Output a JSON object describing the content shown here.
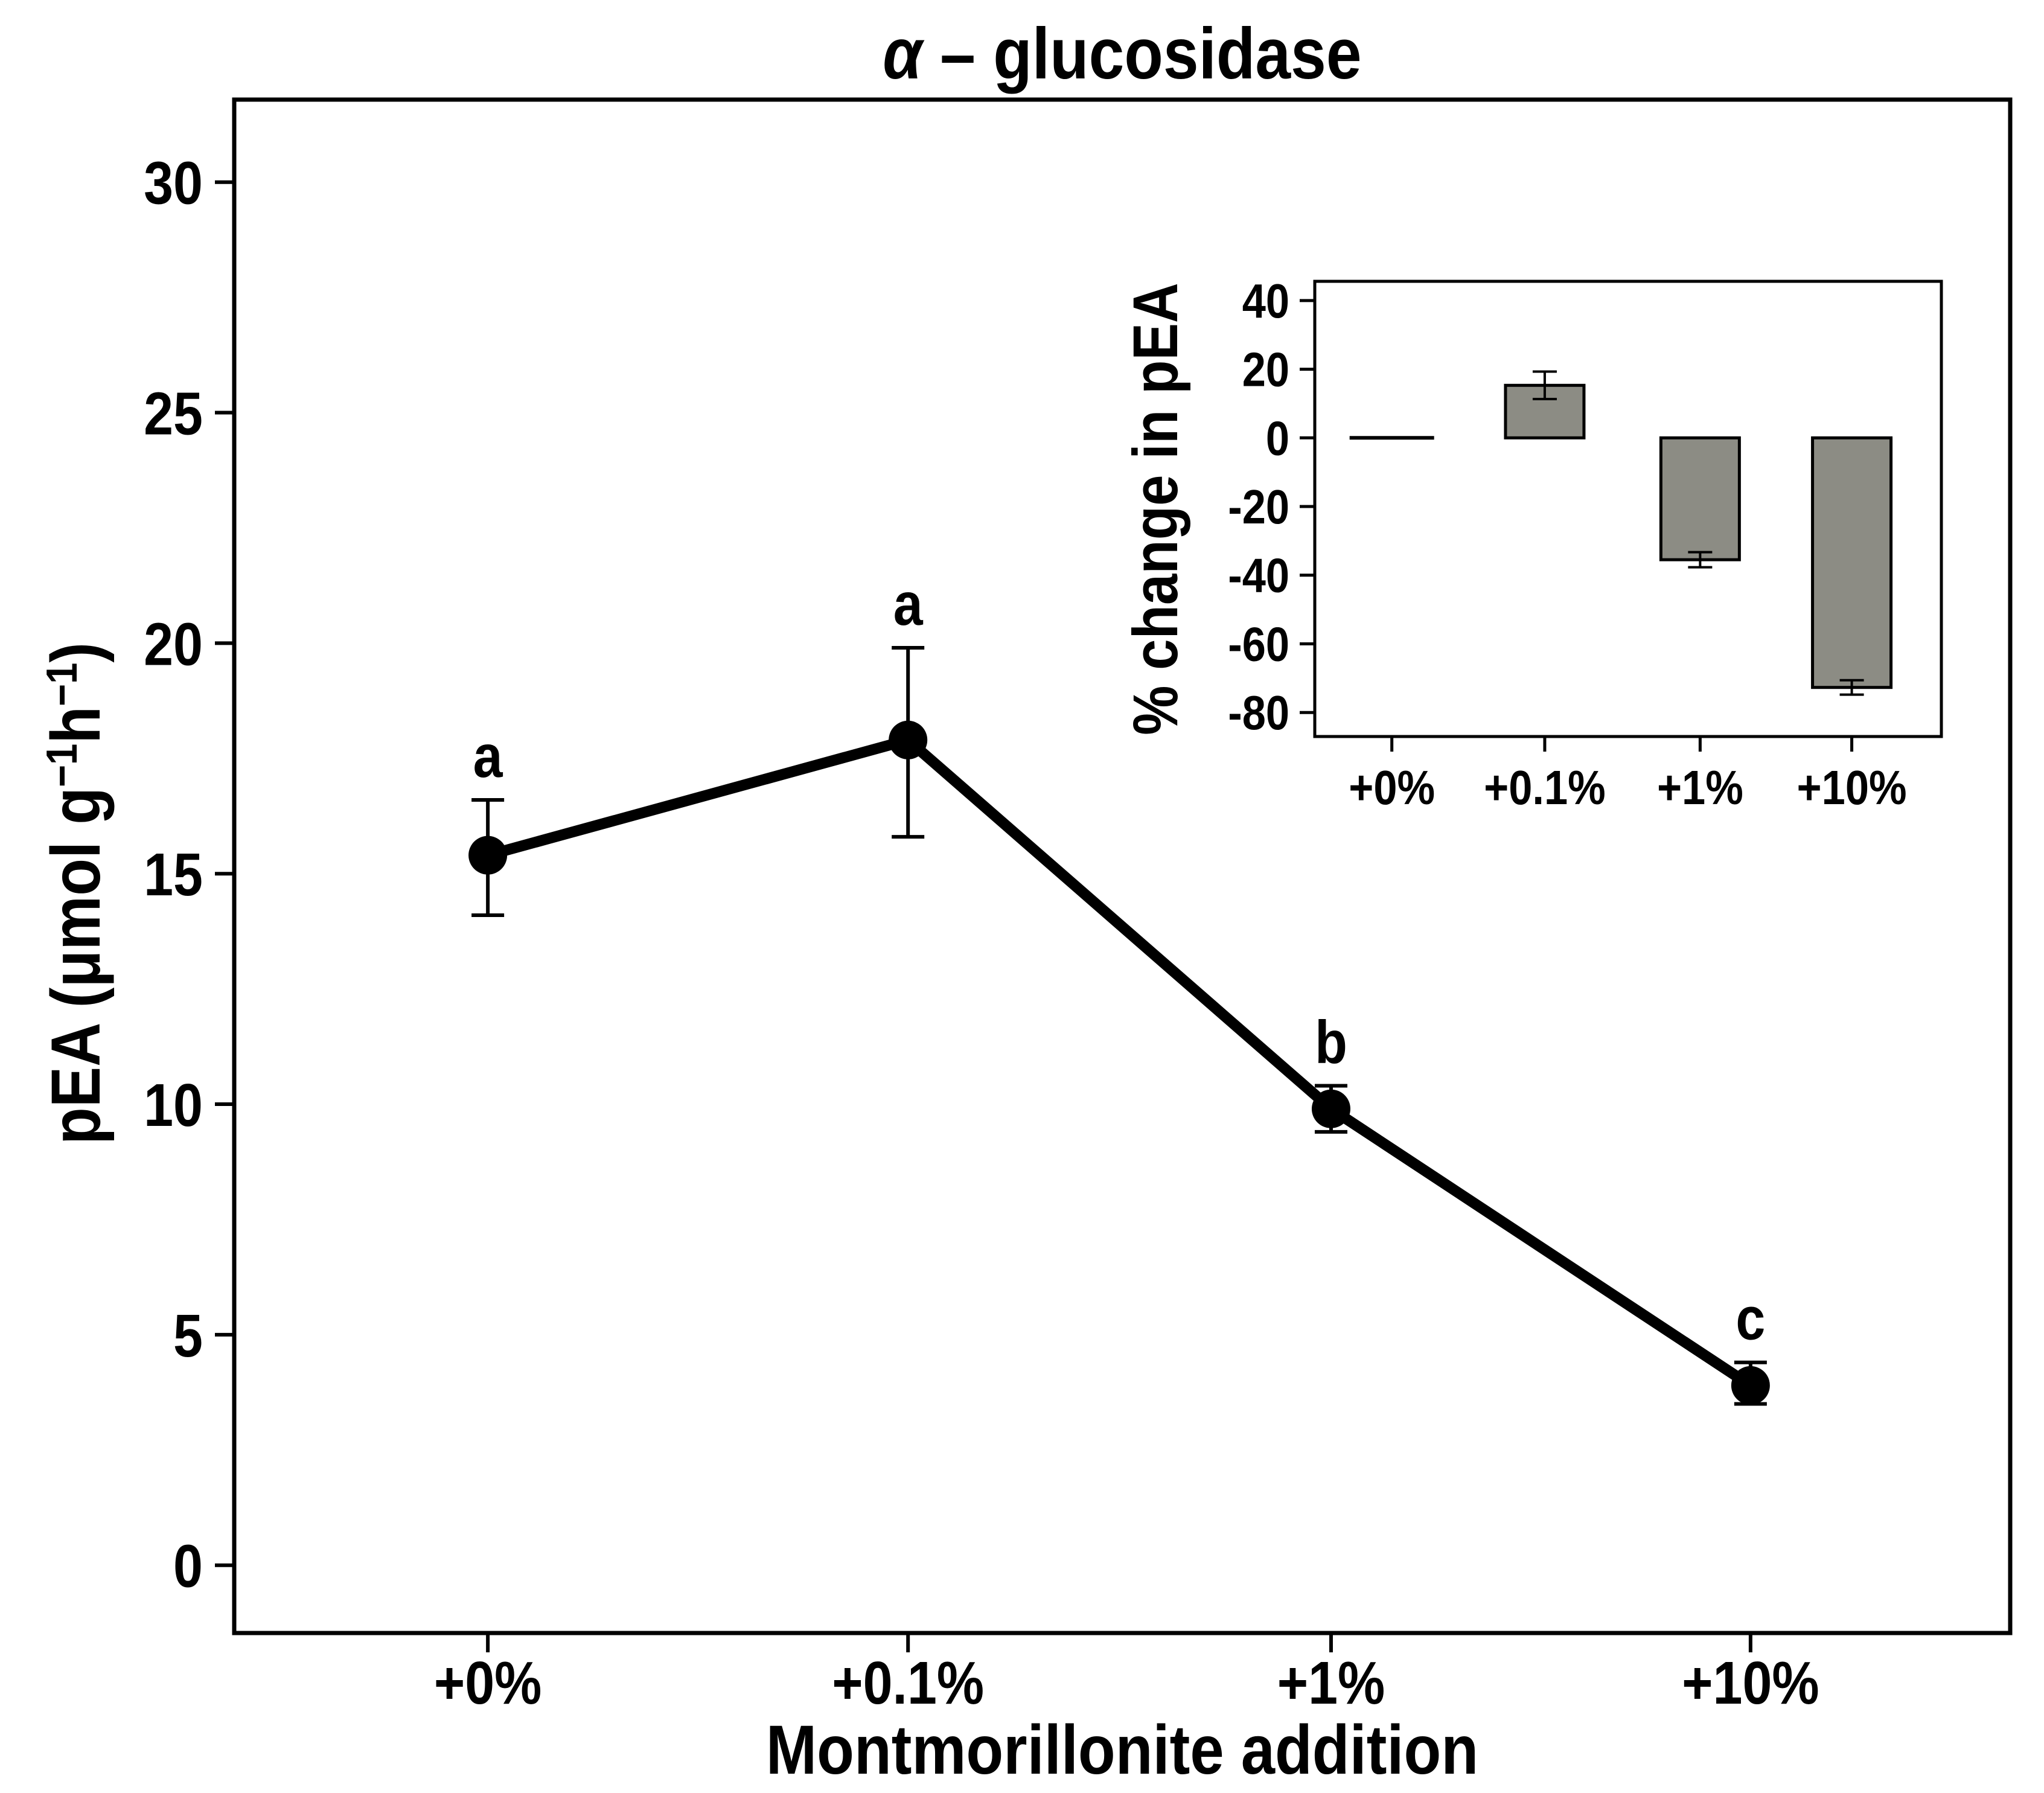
{
  "figure": {
    "colors": {
      "background": "#ffffff",
      "axis": "#000000",
      "marker": "#000000",
      "bar_fill": "#8c8c84"
    }
  },
  "chart_data": [
    {
      "type": "line",
      "title": "α – glucosidase",
      "title_alpha": "α",
      "title_rest": " – glucosidase",
      "xlabel": "Montmorillonite addition",
      "ylabel": "pEA (μmol g⁻¹h⁻¹)",
      "ylabel_parts": [
        {
          "t": "pEA (μmol g"
        },
        {
          "t": "−1",
          "sup": true
        },
        {
          "t": "h"
        },
        {
          "t": "−1",
          "sup": true
        },
        {
          "t": ")"
        }
      ],
      "categories": [
        "+0%",
        "+0.1%",
        "+1%",
        "+10%"
      ],
      "values": [
        15.4,
        17.9,
        9.9,
        3.9
      ],
      "error_low": [
        14.1,
        15.8,
        9.4,
        3.5
      ],
      "error_high": [
        16.6,
        19.9,
        10.4,
        4.4
      ],
      "point_labels": [
        "a",
        "a",
        "b",
        "c"
      ],
      "yticks": [
        0,
        5,
        10,
        15,
        20,
        25,
        30
      ],
      "ylim": [
        -1.47,
        31.79
      ],
      "grid": false,
      "legend": false,
      "marker": "filled-circle"
    },
    {
      "type": "bar",
      "title": "",
      "xlabel": "",
      "ylabel": "% change in pEA",
      "categories": [
        "+0%",
        "+0.1%",
        "+1%",
        "+10%"
      ],
      "values": [
        0,
        15.3,
        -35.5,
        -72.7
      ],
      "error": [
        0,
        4,
        2.2,
        2.1
      ],
      "yticks": [
        40,
        20,
        0,
        -20,
        -40,
        -60,
        -80
      ],
      "ytick_labels": [
        "40",
        "20",
        "0",
        "-20",
        "-40",
        "-60",
        "-80"
      ],
      "ylim": [
        -87,
        45.6
      ],
      "baseline": 0,
      "bar_color": "#8c8c84",
      "grid": false,
      "legend": false
    }
  ]
}
